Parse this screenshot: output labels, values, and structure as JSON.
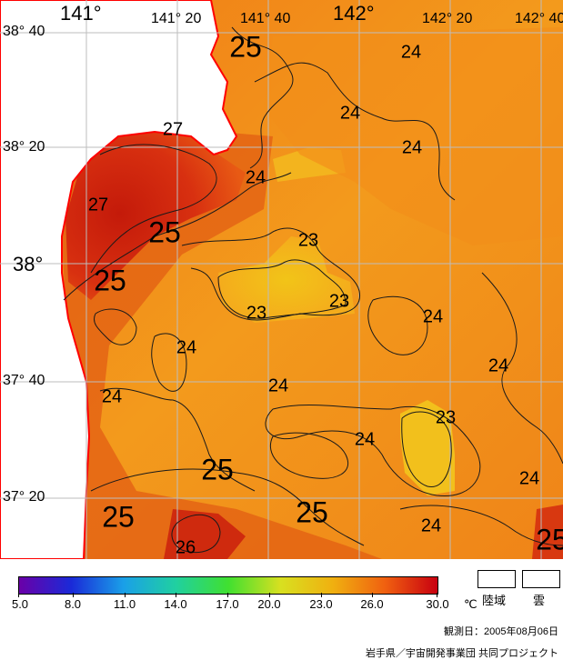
{
  "map": {
    "colors": {
      "ocean_warm": "#f08a1a",
      "ocean_cool": "#f5b020",
      "cool_patch": "#f0c020",
      "hot": "#d82a10",
      "hot_core": "#c41a0a",
      "land": "#ffffff",
      "coast": "#ff0000",
      "grid": "#bfbfbf",
      "contour": "#1a1a1a"
    },
    "grid_labels": {
      "lon": [
        {
          "name": "lon-141-00",
          "text": "141°",
          "size": "big"
        },
        {
          "name": "lon-141-20",
          "text": "141° 20",
          "size": "normal"
        },
        {
          "name": "lon-141-40",
          "text": "141° 40",
          "size": "normal"
        },
        {
          "name": "lon-142-00",
          "text": "142°",
          "size": "big"
        },
        {
          "name": "lon-142-20",
          "text": "142° 20",
          "size": "normal"
        },
        {
          "name": "lon-142-40",
          "text": "142° 40",
          "size": "normal"
        }
      ],
      "lat": [
        {
          "name": "lat-38-40",
          "text": "38° 40",
          "size": "normal"
        },
        {
          "name": "lat-38-20",
          "text": "38° 20",
          "size": "normal"
        },
        {
          "name": "lat-38-00",
          "text": "38°",
          "size": "big"
        },
        {
          "name": "lat-37-40",
          "text": "37° 40",
          "size": "normal"
        },
        {
          "name": "lat-37-20",
          "text": "37° 20",
          "size": "normal"
        }
      ]
    },
    "contour_labels": [
      {
        "text": "25",
        "size": "big"
      },
      {
        "text": "24",
        "size": "normal"
      },
      {
        "text": "24",
        "size": "normal"
      },
      {
        "text": "27",
        "size": "normal"
      },
      {
        "text": "24",
        "size": "normal"
      },
      {
        "text": "24",
        "size": "normal"
      },
      {
        "text": "27",
        "size": "normal"
      },
      {
        "text": "25",
        "size": "big"
      },
      {
        "text": "23",
        "size": "normal"
      },
      {
        "text": "25",
        "size": "big"
      },
      {
        "text": "23",
        "size": "normal"
      },
      {
        "text": "23",
        "size": "normal"
      },
      {
        "text": "24",
        "size": "normal"
      },
      {
        "text": "24",
        "size": "normal"
      },
      {
        "text": "24",
        "size": "normal"
      },
      {
        "text": "24",
        "size": "normal"
      },
      {
        "text": "24",
        "size": "normal"
      },
      {
        "text": "23",
        "size": "normal"
      },
      {
        "text": "24",
        "size": "normal"
      },
      {
        "text": "25",
        "size": "big"
      },
      {
        "text": "24",
        "size": "normal"
      },
      {
        "text": "25",
        "size": "big"
      },
      {
        "text": "25",
        "size": "big"
      },
      {
        "text": "24",
        "size": "normal"
      },
      {
        "text": "26",
        "size": "normal"
      },
      {
        "text": "25",
        "size": "big"
      }
    ]
  },
  "legend": {
    "ticks": [
      "5.0",
      "8.0",
      "11.0",
      "14.0",
      "17.0",
      "20.0",
      "23.0",
      "26.0",
      "30.0"
    ],
    "unit": "℃",
    "gradient": [
      "#6a00a8",
      "#1a2ad8",
      "#1aa0e8",
      "#20d0a0",
      "#40e030",
      "#d8e020",
      "#f0b010",
      "#f06010",
      "#c80010"
    ],
    "land_label": "陸域",
    "cloud_label": "雲"
  },
  "footer": {
    "observation": "観測日：2005年08月06日",
    "credit": "岩手県／宇宙開発事業団 共同プロジェクト"
  }
}
